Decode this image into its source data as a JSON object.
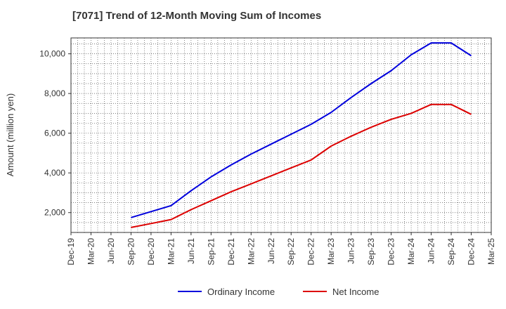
{
  "chart_data": {
    "type": "line",
    "title": "[7071]  Trend of 12-Month Moving Sum of Incomes",
    "xlabel": "",
    "ylabel": "Amount (million yen)",
    "categories": [
      "Dec-19",
      "Mar-20",
      "Jun-20",
      "Sep-20",
      "Dec-20",
      "Mar-21",
      "Jun-21",
      "Sep-21",
      "Dec-21",
      "Mar-22",
      "Jun-22",
      "Sep-22",
      "Dec-22",
      "Mar-23",
      "Jun-23",
      "Sep-23",
      "Dec-23",
      "Mar-24",
      "Jun-24",
      "Sep-24",
      "Dec-24",
      "Mar-25"
    ],
    "ylim": [
      1000,
      10800
    ],
    "yticks": [
      2000,
      4000,
      6000,
      8000,
      10000
    ],
    "ytick_labels": [
      "2,000",
      "4,000",
      "6,000",
      "8,000",
      "10,000"
    ],
    "grid": true,
    "legend_position": "bottom",
    "series": [
      {
        "name": "Ordinary Income",
        "color": "#0000dd",
        "values": [
          null,
          null,
          null,
          1750,
          2050,
          2350,
          3100,
          3800,
          4400,
          4950,
          5450,
          5950,
          6450,
          7050,
          7800,
          8500,
          9150,
          9950,
          10550,
          10550,
          9900,
          null
        ]
      },
      {
        "name": "Net Income",
        "color": "#dd0000",
        "values": [
          null,
          null,
          null,
          1250,
          1450,
          1650,
          2150,
          2600,
          3050,
          3450,
          3850,
          4250,
          4650,
          5350,
          5850,
          6300,
          6700,
          7000,
          7450,
          7450,
          6950,
          null
        ]
      }
    ]
  }
}
